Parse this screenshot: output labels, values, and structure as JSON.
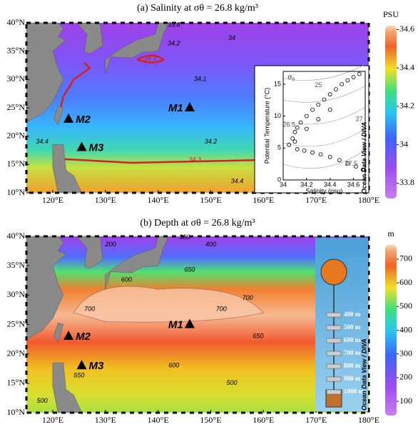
{
  "chart_data": [
    {
      "type": "map",
      "title": "(a) Salinity at σθ = 26.8 kg/m³",
      "xlim": [
        115,
        180
      ],
      "ylim": [
        10,
        40
      ],
      "xticks": [
        {
          "value": 120,
          "label": "120°E"
        },
        {
          "value": 130,
          "label": "130°E"
        },
        {
          "value": 140,
          "label": "140°E"
        },
        {
          "value": 150,
          "label": "150°E"
        },
        {
          "value": 160,
          "label": "160°E"
        },
        {
          "value": 170,
          "label": "170°E"
        },
        {
          "value": 180,
          "label": "180°E"
        }
      ],
      "yticks": [
        {
          "value": 10,
          "label": "10°N"
        },
        {
          "value": 15,
          "label": "15°N"
        },
        {
          "value": 20,
          "label": "20°N"
        },
        {
          "value": 25,
          "label": "25°N"
        },
        {
          "value": 30,
          "label": "30°N"
        },
        {
          "value": 35,
          "label": "35°N"
        },
        {
          "value": 40,
          "label": "40°N"
        }
      ],
      "colorbar": {
        "label": "PSU",
        "lim": [
          33.72,
          34.62
        ],
        "ticks": [
          33.8,
          34,
          34.2,
          34.4,
          34.6
        ]
      },
      "stations": [
        {
          "name": "M1",
          "lon": 146,
          "lat": 25
        },
        {
          "name": "M2",
          "lon": 123,
          "lat": 23
        },
        {
          "name": "M3",
          "lon": 125.5,
          "lat": 18
        }
      ],
      "contour_labels": [
        {
          "value": 34.3,
          "lon": 138.5,
          "lat": 33.6,
          "color": "#d62020"
        },
        {
          "value": 34.3,
          "lon": 147,
          "lat": 15.8,
          "color": "#d62020"
        },
        {
          "value": 34.4,
          "lon": 118,
          "lat": 19,
          "color": "#000000"
        },
        {
          "value": 34.2,
          "lon": 150,
          "lat": 19,
          "color": "#000000"
        },
        {
          "value": 34.1,
          "lon": 148,
          "lat": 30,
          "color": "#000000"
        },
        {
          "value": 34.2,
          "lon": 143,
          "lat": 36.3,
          "color": "#000000"
        },
        {
          "value": 34,
          "lon": 154,
          "lat": 37.3,
          "color": "#000000"
        },
        {
          "value": 33.8,
          "lon": 143,
          "lat": 39.6,
          "color": "#000000"
        },
        {
          "value": 34.4,
          "lon": 155,
          "lat": 12,
          "color": "#000000"
        }
      ],
      "inset": {
        "type": "scatter",
        "title": "σ₀",
        "xlabel": "Salinity (psu)",
        "ylabel": "Potential Temperature (°C)",
        "xlim": [
          34,
          34.7
        ],
        "ylim": [
          0,
          17
        ],
        "xticks": [
          34,
          34.2,
          34.4,
          34.6
        ],
        "yticks": [
          0,
          5,
          10,
          15
        ],
        "x": [
          34.05,
          34.08,
          34.1,
          34.12,
          34.15,
          34.2,
          34.25,
          34.3,
          34.35,
          34.4,
          34.45,
          34.5,
          34.55,
          34.6,
          34.65,
          34.12,
          34.18,
          34.25,
          34.32,
          34.4,
          34.48,
          34.55,
          34.62,
          34.68,
          34.1,
          34.2,
          34.3,
          34.4
        ],
        "y": [
          5.5,
          6.5,
          7.5,
          8.2,
          9,
          10,
          11,
          11.8,
          12.6,
          13.4,
          14.2,
          15,
          15.6,
          16.1,
          16.6,
          4.8,
          4.6,
          4.3,
          4,
          3.6,
          3.1,
          2.6,
          2.1,
          1.6,
          6,
          8,
          9.5,
          11
        ],
        "isopycnal_labels": [
          {
            "value": 25,
            "s": 34.3,
            "t": 14.8
          },
          {
            "value": 26.5,
            "s": 34.05,
            "t": 8.6
          },
          {
            "value": 27,
            "s": 34.65,
            "t": 9.5
          },
          {
            "value": 27.5,
            "s": 34.58,
            "t": 2.5
          }
        ]
      },
      "watermark": "Ocean Data View / DIVA"
    },
    {
      "type": "map",
      "title": "(b) Depth at σθ = 26.8 kg/m³",
      "xlim": [
        115,
        180
      ],
      "ylim": [
        10,
        40
      ],
      "xticks": [
        {
          "value": 120,
          "label": "120°E"
        },
        {
          "value": 130,
          "label": "130°E"
        },
        {
          "value": 140,
          "label": "140°E"
        },
        {
          "value": 150,
          "label": "150°E"
        },
        {
          "value": 160,
          "label": "160°E"
        },
        {
          "value": 170,
          "label": "170°E"
        },
        {
          "value": 180,
          "label": "180°E"
        }
      ],
      "yticks": [
        {
          "value": 10,
          "label": "10°N"
        },
        {
          "value": 15,
          "label": "15°N"
        },
        {
          "value": 20,
          "label": "20°N"
        },
        {
          "value": 25,
          "label": "25°N"
        },
        {
          "value": 30,
          "label": "30°N"
        },
        {
          "value": 35,
          "label": "35°N"
        },
        {
          "value": 40,
          "label": "40°N"
        }
      ],
      "colorbar": {
        "label": "m",
        "lim": [
          40,
          760
        ],
        "ticks": [
          100,
          200,
          300,
          400,
          500,
          600,
          700
        ]
      },
      "stations": [
        {
          "name": "M1",
          "lon": 146,
          "lat": 25
        },
        {
          "name": "M2",
          "lon": 123,
          "lat": 23
        },
        {
          "name": "M3",
          "lon": 125.5,
          "lat": 18
        }
      ],
      "contour_labels": [
        {
          "value": 400,
          "lon": 150,
          "lat": 38.6,
          "color": "#000000"
        },
        {
          "value": 300,
          "lon": 145,
          "lat": 39.8,
          "color": "#000000"
        },
        {
          "value": 200,
          "lon": 131,
          "lat": 38.6,
          "color": "#000000"
        },
        {
          "value": 650,
          "lon": 146,
          "lat": 34.3,
          "color": "#000000"
        },
        {
          "value": 600,
          "lon": 134,
          "lat": 32.6,
          "color": "#000000"
        },
        {
          "value": 700,
          "lon": 127,
          "lat": 27.6,
          "color": "#000000"
        },
        {
          "value": 700,
          "lon": 157,
          "lat": 29.5,
          "color": "#000000"
        },
        {
          "value": 700,
          "lon": 152,
          "lat": 27.6,
          "color": "#000000"
        },
        {
          "value": 650,
          "lon": 159,
          "lat": 23,
          "color": "#000000"
        },
        {
          "value": 600,
          "lon": 143,
          "lat": 18,
          "color": "#000000"
        },
        {
          "value": 550,
          "lon": 125,
          "lat": 16.3,
          "color": "#000000"
        },
        {
          "value": 500,
          "lon": 154,
          "lat": 15,
          "color": "#000000"
        },
        {
          "value": 500,
          "lon": 118,
          "lat": 12,
          "color": "#000000"
        }
      ],
      "mooring_labels": [
        "400 m",
        "500 m",
        "600 m",
        "700 m",
        "800 m",
        "900 m",
        "1000 m"
      ],
      "watermark": "Ocean Data View / DIVA"
    }
  ]
}
